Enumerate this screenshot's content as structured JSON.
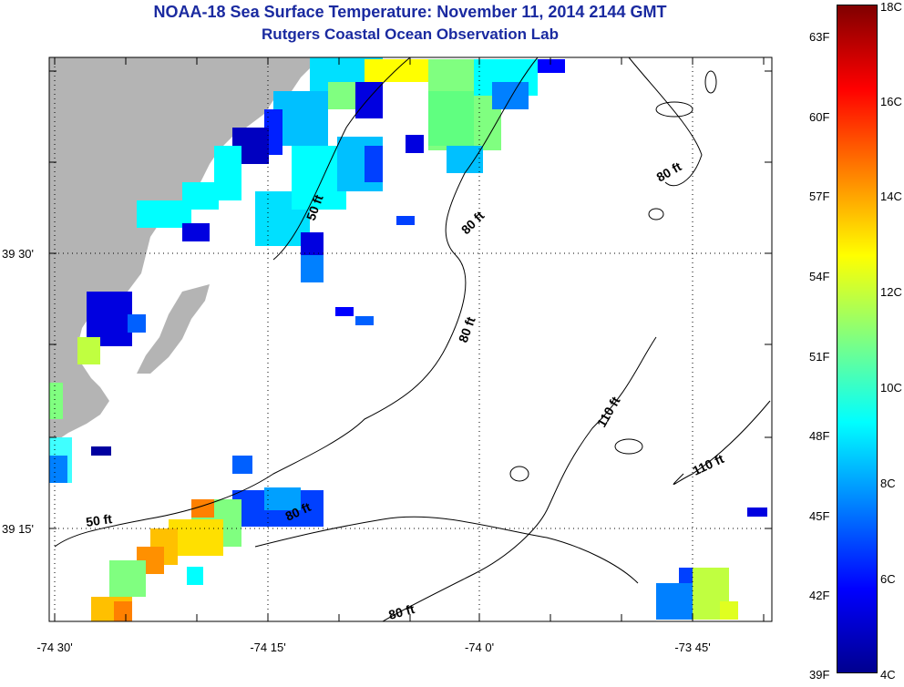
{
  "title": "NOAA-18 Sea Surface Temperature:  November 11, 2014 2144 GMT",
  "subtitle": "Rutgers Coastal Ocean Observation Lab",
  "x_ticks": [
    "-74 30'",
    "-74 15'",
    "-74 0'",
    "-73 45'"
  ],
  "y_ticks": [
    "39 30'",
    "39 15'"
  ],
  "contour_labels": [
    "50 ft",
    "80 ft",
    "80 ft",
    "80 ft",
    "110 ft",
    "110 ft",
    "50 ft",
    "80 ft",
    "80 ft"
  ],
  "colorbar": {
    "fahrenheit": [
      "63F",
      "60F",
      "57F",
      "54F",
      "51F",
      "48F",
      "45F",
      "42F",
      "39F"
    ],
    "celsius": [
      "18C",
      "16C",
      "14C",
      "12C",
      "10C",
      "8C",
      "6C",
      "4C"
    ],
    "range_c": [
      4,
      18
    ],
    "colors": [
      "#00008f",
      "#0000ff",
      "#0080ff",
      "#00ffff",
      "#80ff80",
      "#ffff00",
      "#ff8000",
      "#ff0000",
      "#800000"
    ]
  },
  "colors": {
    "land": "#b4b4b4",
    "title": "#1a2aa0"
  }
}
